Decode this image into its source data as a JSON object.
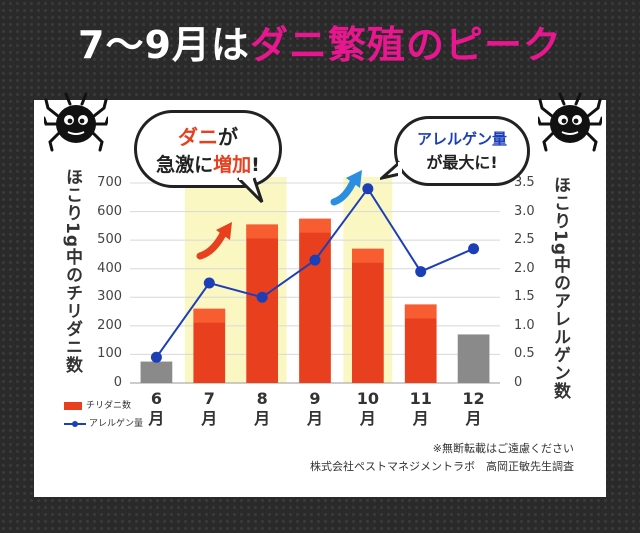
{
  "title": {
    "white": "7〜9月は",
    "pink": "ダニ繁殖のピーク"
  },
  "bubbles": {
    "left_line1_red": "ダニ",
    "left_line1_dark": "が",
    "left_line2_a": "急激に",
    "left_line2_red": "増加",
    "left_line2_b": "!",
    "right_line1": "アレルゲン量",
    "right_line2": "が最大に!"
  },
  "footnote": {
    "line1": "※無断転載はご遠慮ください",
    "line2": "株式会社ペストマネジメントラボ　高岡正敏先生調査"
  },
  "colors": {
    "highlight_bar": "#e8401f",
    "normal_bar": "#8a8a8a",
    "line": "#1c3fb8",
    "highlight_band": "#fbf7c2",
    "title_pink": "#e8178f"
  },
  "chart_data": {
    "type": "bar",
    "categories": [
      "6月",
      "7月",
      "8月",
      "9月",
      "10月",
      "11月",
      "12月"
    ],
    "x_tick_labels": [
      "6\n月",
      "7\n月",
      "8\n月",
      "9\n月",
      "10\n月",
      "11\n月",
      "12\n月"
    ],
    "series": [
      {
        "name": "チリダニ数",
        "type": "bar",
        "axis": "left",
        "values": [
          75,
          260,
          555,
          575,
          470,
          275,
          170
        ],
        "highlighted": [
          false,
          true,
          true,
          true,
          true,
          true,
          false
        ]
      },
      {
        "name": "アレルゲン量",
        "type": "line",
        "axis": "right",
        "values": [
          0.45,
          1.75,
          1.5,
          2.15,
          3.4,
          1.95,
          2.35
        ]
      }
    ],
    "ylabel": "ほこり1g中のチリダニ数",
    "ylabel_right": "ほこり1g中のアレルゲン数",
    "ylim": [
      0,
      700
    ],
    "ylim_right": [
      0,
      3.5
    ],
    "yticks": [
      "0",
      "100",
      "200",
      "300",
      "400",
      "500",
      "600",
      "700"
    ],
    "yticks_right": [
      "0",
      "0.5",
      "1.0",
      "1.5",
      "2.0",
      "2.5",
      "3.0",
      "3.5"
    ],
    "highlight_ranges": [
      [
        "7月",
        "8月"
      ],
      [
        "10月",
        "10月"
      ]
    ],
    "legend_placement": "bottom-left",
    "grid": true
  }
}
